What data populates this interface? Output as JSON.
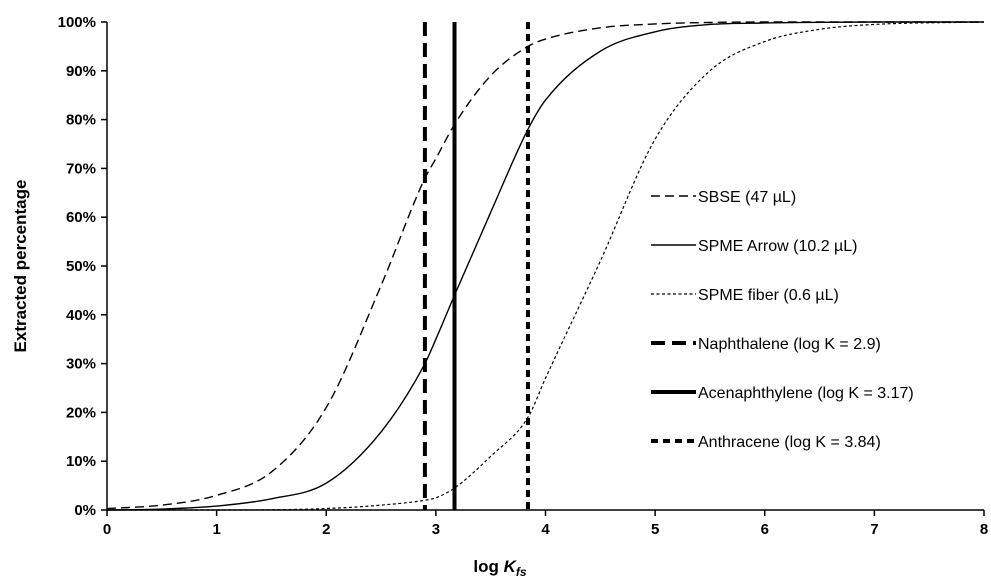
{
  "chart_data": {
    "type": "line",
    "title": "",
    "xlabel": "log ",
    "xlabel_sub": "K",
    "xlabel_subscript": "fs",
    "ylabel": "Extracted percentage",
    "xlim": [
      0,
      8
    ],
    "ylim": [
      0,
      100
    ],
    "x_ticks": [
      "0",
      "1",
      "2",
      "3",
      "4",
      "5",
      "6",
      "7",
      "8"
    ],
    "y_ticks": [
      "0%",
      "10%",
      "20%",
      "30%",
      "40%",
      "50%",
      "60%",
      "70%",
      "80%",
      "90%",
      "100%"
    ],
    "grid": false,
    "legend_position": "right",
    "series": [
      {
        "name": "SBSE (47 µL)",
        "style": "dashed",
        "x": [
          0,
          0.5,
          1,
          1.5,
          2,
          2.5,
          2.9,
          3,
          3.17,
          3.5,
          3.84,
          4,
          4.5,
          5,
          5.5,
          6,
          7,
          8
        ],
        "values": [
          0.3,
          1,
          3,
          7.8,
          21,
          46,
          68,
          72,
          79,
          89,
          95,
          96.5,
          98.8,
          99.6,
          99.9,
          100,
          100,
          100
        ]
      },
      {
        "name": "SPME Arrow (10.2 µL)",
        "style": "solid",
        "x": [
          0,
          0.5,
          1,
          1.5,
          2,
          2.5,
          2.9,
          3,
          3.17,
          3.5,
          3.84,
          4,
          4.5,
          5,
          5.5,
          6,
          7,
          8
        ],
        "values": [
          0,
          0.2,
          0.8,
          2.3,
          5.5,
          16,
          30,
          35,
          44,
          61,
          78,
          84,
          94,
          98,
          99.5,
          99.8,
          100,
          100
        ]
      },
      {
        "name": "SPME fiber (0.6 µL)",
        "style": "dotted",
        "x": [
          0,
          1,
          2,
          2.5,
          2.9,
          3,
          3.17,
          3.5,
          3.84,
          4,
          4.5,
          5,
          5.5,
          6,
          6.5,
          7,
          8
        ],
        "values": [
          0,
          0,
          0.3,
          1,
          2,
          2.5,
          4.5,
          11,
          19,
          27,
          51,
          76,
          90,
          96,
          98.5,
          99.5,
          100
        ]
      }
    ],
    "vertical_lines": [
      {
        "name": "Naphthalene (log K = 2.9)",
        "x": 2.9,
        "style": "long-dash"
      },
      {
        "name": "Acenaphthylene (log K = 3.17)",
        "x": 3.17,
        "style": "solid"
      },
      {
        "name": "Anthracene (log K = 3.84)",
        "x": 3.84,
        "style": "short-dash"
      }
    ]
  }
}
